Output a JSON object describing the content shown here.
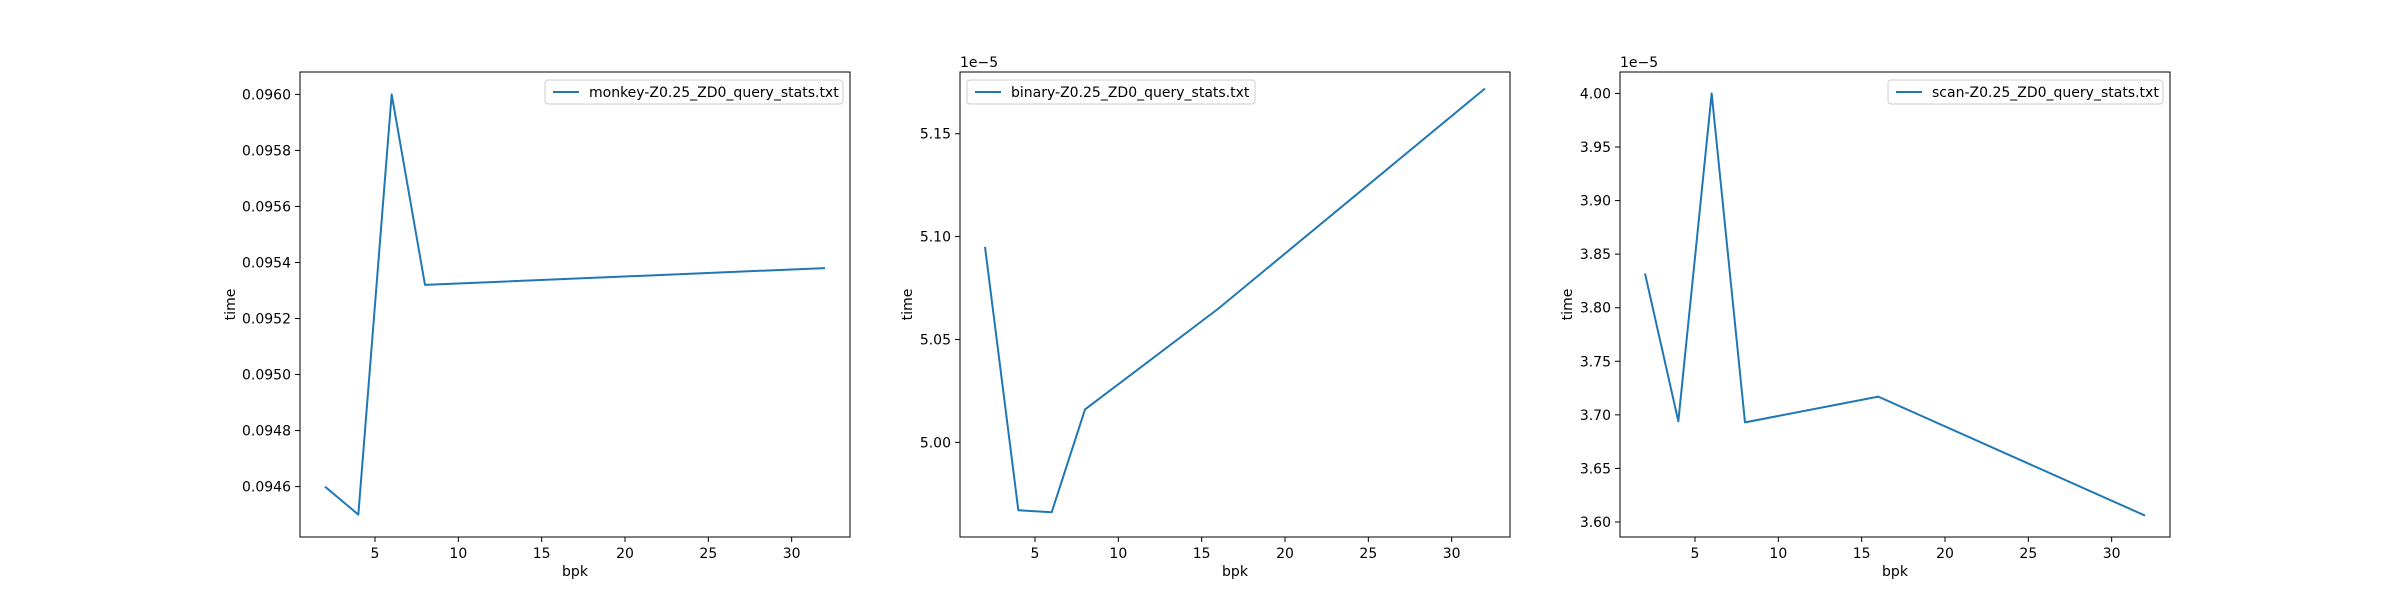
{
  "chart_data": [
    {
      "type": "line",
      "xlabel": "bpk",
      "ylabel": "time",
      "offset_text": "",
      "xlim": [
        0.5,
        33.5
      ],
      "ylim": [
        0.09442,
        0.09608
      ],
      "xticks": [
        5,
        10,
        15,
        20,
        25,
        30
      ],
      "xtick_labels": [
        "5",
        "10",
        "15",
        "20",
        "25",
        "30"
      ],
      "yticks": [
        0.0946,
        0.0948,
        0.095,
        0.0952,
        0.0954,
        0.0956,
        0.0958,
        0.096
      ],
      "ytick_labels": [
        "0.0946",
        "0.0948",
        "0.0950",
        "0.0952",
        "0.0954",
        "0.0956",
        "0.0958",
        "0.0960"
      ],
      "legend_position": "top-right",
      "series": [
        {
          "name": "monkey-Z0.25_ZD0_query_stats.txt",
          "color": "#1f77b4",
          "x": [
            2,
            4,
            6,
            8,
            32
          ],
          "y": [
            0.0946,
            0.0945,
            0.096,
            0.09532,
            0.09538
          ]
        }
      ]
    },
    {
      "type": "line",
      "xlabel": "bpk",
      "ylabel": "time",
      "offset_text": "1e−5",
      "xlim": [
        0.5,
        33.5
      ],
      "ylim": [
        4.954,
        5.18
      ],
      "xticks": [
        5,
        10,
        15,
        20,
        25,
        30
      ],
      "xtick_labels": [
        "5",
        "10",
        "15",
        "20",
        "25",
        "30"
      ],
      "yticks": [
        5.0,
        5.05,
        5.1,
        5.15
      ],
      "ytick_labels": [
        "5.00",
        "5.05",
        "5.10",
        "5.15"
      ],
      "legend_position": "top-left",
      "series": [
        {
          "name": "binary-Z0.25_ZD0_query_stats.txt",
          "color": "#1f77b4",
          "x": [
            2,
            4,
            6,
            8,
            16,
            32
          ],
          "y": [
            5.095,
            4.967,
            4.966,
            5.016,
            5.065,
            5.172
          ]
        }
      ]
    },
    {
      "type": "line",
      "xlabel": "bpk",
      "ylabel": "time",
      "offset_text": "1e−5",
      "xlim": [
        0.5,
        33.5
      ],
      "ylim": [
        3.586,
        4.02
      ],
      "xticks": [
        5,
        10,
        15,
        20,
        25,
        30
      ],
      "xtick_labels": [
        "5",
        "10",
        "15",
        "20",
        "25",
        "30"
      ],
      "yticks": [
        3.6,
        3.65,
        3.7,
        3.75,
        3.8,
        3.85,
        3.9,
        3.95,
        4.0
      ],
      "ytick_labels": [
        "3.60",
        "3.65",
        "3.70",
        "3.75",
        "3.80",
        "3.85",
        "3.90",
        "3.95",
        "4.00"
      ],
      "legend_position": "top-right",
      "series": [
        {
          "name": "scan-Z0.25_ZD0_query_stats.txt",
          "color": "#1f77b4",
          "x": [
            2,
            4,
            6,
            8,
            16,
            32
          ],
          "y": [
            3.832,
            3.694,
            4.0,
            3.693,
            3.717,
            3.606
          ]
        }
      ]
    }
  ]
}
